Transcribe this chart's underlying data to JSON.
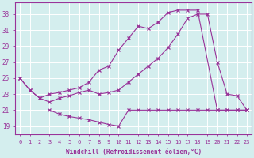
{
  "bg_color": "#d4eeee",
  "line_color": "#993399",
  "grid_color": "#ffffff",
  "xlabel": "Windchill (Refroidissement éolien,°C)",
  "ylabel_ticks": [
    19,
    21,
    23,
    25,
    27,
    29,
    31,
    33
  ],
  "xlim": [
    -0.5,
    23.5
  ],
  "ylim": [
    18.0,
    34.5
  ],
  "xtick_labels": [
    "0",
    "1",
    "2",
    "3",
    "4",
    "5",
    "6",
    "7",
    "8",
    "9",
    "10",
    "11",
    "12",
    "13",
    "14",
    "15",
    "16",
    "17",
    "18",
    "19",
    "20",
    "21",
    "22",
    "23"
  ],
  "line1_x": [
    0,
    1,
    2,
    3,
    4,
    5,
    6,
    7,
    8,
    9,
    10,
    11,
    12,
    13,
    14,
    15,
    16,
    17,
    18,
    20,
    21,
    22,
    23
  ],
  "line1_y": [
    25.0,
    23.5,
    22.5,
    23.0,
    23.2,
    23.5,
    23.8,
    24.5,
    26.0,
    26.5,
    28.5,
    30.0,
    31.5,
    31.2,
    32.0,
    33.2,
    33.5,
    33.5,
    33.5,
    21.0,
    21.0,
    21.0,
    21.0
  ],
  "line2_x": [
    0,
    1,
    2,
    3,
    4,
    5,
    6,
    7,
    8,
    9,
    10,
    11,
    12,
    13,
    14,
    15,
    16,
    17,
    18,
    19,
    20,
    21,
    22,
    23
  ],
  "line2_y": [
    25.0,
    23.5,
    22.5,
    22.0,
    22.5,
    22.8,
    23.2,
    23.5,
    23.0,
    23.2,
    23.5,
    24.5,
    25.5,
    26.5,
    27.5,
    28.8,
    30.5,
    32.5,
    33.0,
    33.0,
    27.0,
    23.0,
    22.8,
    21.0
  ],
  "line3_x": [
    3,
    4,
    5,
    6,
    7,
    8,
    9,
    10,
    11,
    12,
    13,
    14,
    15,
    16,
    17,
    18,
    19,
    20,
    21,
    22,
    23
  ],
  "line3_y": [
    21.0,
    20.5,
    20.2,
    20.0,
    19.8,
    19.5,
    19.2,
    19.0,
    21.0,
    21.0,
    21.0,
    21.0,
    21.0,
    21.0,
    21.0,
    21.0,
    21.0,
    21.0,
    21.0,
    21.0,
    21.0
  ]
}
